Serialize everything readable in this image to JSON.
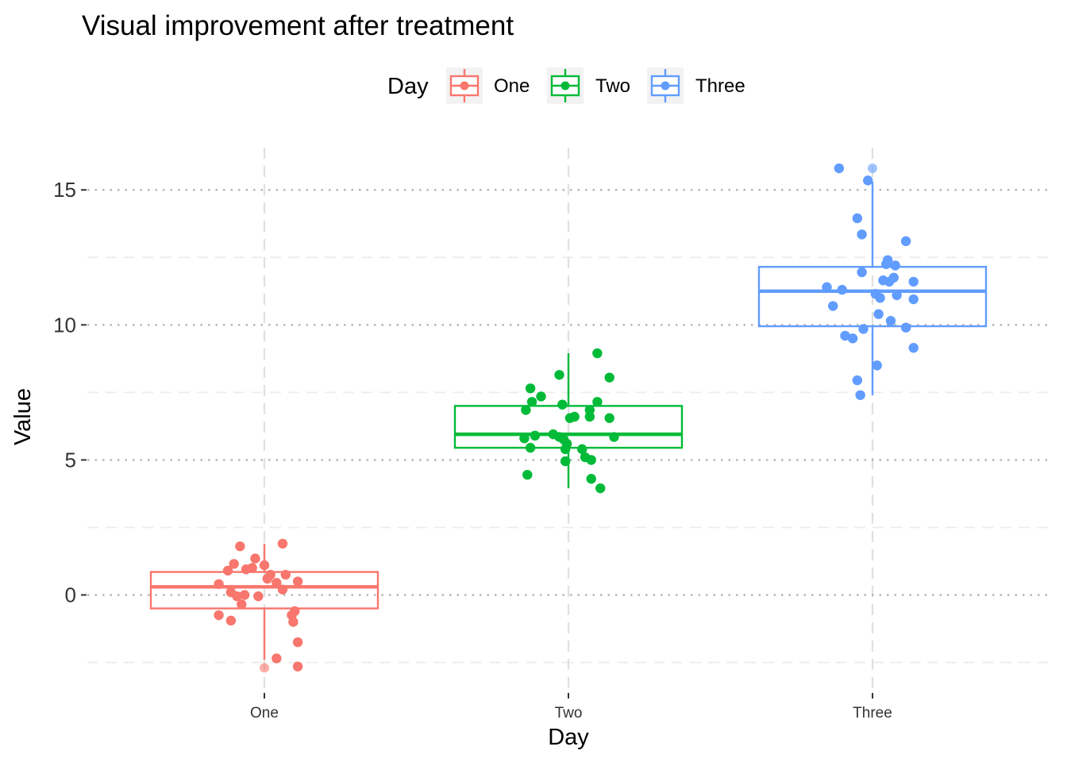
{
  "chart_data": {
    "type": "boxplot",
    "title": "Visual improvement after treatment",
    "xlabel": "Day",
    "ylabel": "Value",
    "ylim": [
      -3.6,
      16.8
    ],
    "yticks": [
      0,
      5,
      10,
      15
    ],
    "ytick_labels": [
      "0",
      "5",
      "10",
      "15"
    ],
    "grid": true,
    "legend": {
      "title": "Day",
      "position": "top"
    },
    "categories": [
      "One",
      "Two",
      "Three"
    ],
    "series": [
      {
        "name": "One",
        "color": "#F8766D",
        "box": {
          "whisker_low": -2.4,
          "q1": -0.5,
          "median": 0.3,
          "q3": 0.85,
          "whisker_high": 1.9
        },
        "outliers": [
          -2.7
        ],
        "points": [
          {
            "dx": -0.08,
            "y": 1.8
          },
          {
            "dx": 0.06,
            "y": 1.9
          },
          {
            "dx": -0.1,
            "y": 1.15
          },
          {
            "dx": -0.03,
            "y": 1.35
          },
          {
            "dx": 0.0,
            "y": 1.1
          },
          {
            "dx": -0.12,
            "y": 0.9
          },
          {
            "dx": -0.06,
            "y": 0.95
          },
          {
            "dx": -0.04,
            "y": 1.0
          },
          {
            "dx": 0.02,
            "y": 0.75
          },
          {
            "dx": 0.07,
            "y": 0.75
          },
          {
            "dx": 0.01,
            "y": 0.6
          },
          {
            "dx": 0.04,
            "y": 0.45
          },
          {
            "dx": 0.11,
            "y": 0.5
          },
          {
            "dx": -0.15,
            "y": 0.4
          },
          {
            "dx": 0.06,
            "y": 0.2
          },
          {
            "dx": -0.11,
            "y": 0.1
          },
          {
            "dx": -0.09,
            "y": -0.05
          },
          {
            "dx": -0.065,
            "y": 0.0
          },
          {
            "dx": -0.02,
            "y": -0.05
          },
          {
            "dx": -0.075,
            "y": -0.35
          },
          {
            "dx": 0.1,
            "y": -0.6
          },
          {
            "dx": 0.09,
            "y": -0.75
          },
          {
            "dx": -0.15,
            "y": -0.75
          },
          {
            "dx": 0.095,
            "y": -1.0
          },
          {
            "dx": -0.11,
            "y": -0.95
          },
          {
            "dx": 0.11,
            "y": -1.75
          },
          {
            "dx": 0.04,
            "y": -2.35
          },
          {
            "dx": 0.11,
            "y": -2.65
          }
        ]
      },
      {
        "name": "Two",
        "color": "#00BA38",
        "box": {
          "whisker_low": 3.95,
          "q1": 5.45,
          "median": 5.95,
          "q3": 7.0,
          "whisker_high": 8.95
        },
        "outliers": [],
        "points": [
          {
            "dx": 0.095,
            "y": 8.95
          },
          {
            "dx": -0.03,
            "y": 8.15
          },
          {
            "dx": 0.135,
            "y": 8.05
          },
          {
            "dx": -0.125,
            "y": 7.65
          },
          {
            "dx": -0.09,
            "y": 7.35
          },
          {
            "dx": -0.12,
            "y": 7.15
          },
          {
            "dx": 0.095,
            "y": 7.15
          },
          {
            "dx": -0.02,
            "y": 7.05
          },
          {
            "dx": -0.14,
            "y": 6.85
          },
          {
            "dx": 0.07,
            "y": 6.85
          },
          {
            "dx": 0.02,
            "y": 6.6
          },
          {
            "dx": 0.005,
            "y": 6.55
          },
          {
            "dx": 0.07,
            "y": 6.6
          },
          {
            "dx": 0.135,
            "y": 6.55
          },
          {
            "dx": -0.11,
            "y": 5.9
          },
          {
            "dx": -0.05,
            "y": 5.95
          },
          {
            "dx": -0.03,
            "y": 5.85
          },
          {
            "dx": -0.145,
            "y": 5.8
          },
          {
            "dx": -0.015,
            "y": 5.75
          },
          {
            "dx": 0.15,
            "y": 5.85
          },
          {
            "dx": -0.005,
            "y": 5.6
          },
          {
            "dx": -0.125,
            "y": 5.45
          },
          {
            "dx": -0.01,
            "y": 5.4
          },
          {
            "dx": 0.045,
            "y": 5.4
          },
          {
            "dx": 0.055,
            "y": 5.1
          },
          {
            "dx": 0.075,
            "y": 5.0
          },
          {
            "dx": -0.01,
            "y": 4.95
          },
          {
            "dx": -0.135,
            "y": 4.45
          },
          {
            "dx": 0.075,
            "y": 4.3
          },
          {
            "dx": 0.105,
            "y": 3.95
          }
        ]
      },
      {
        "name": "Three",
        "color": "#619CFF",
        "box": {
          "whisker_low": 7.4,
          "q1": 9.95,
          "median": 11.25,
          "q3": 12.15,
          "whisker_high": 15.3
        },
        "outliers": [
          15.8
        ],
        "points": [
          {
            "dx": -0.11,
            "y": 15.8
          },
          {
            "dx": -0.015,
            "y": 15.35
          },
          {
            "dx": -0.05,
            "y": 13.95
          },
          {
            "dx": -0.035,
            "y": 13.35
          },
          {
            "dx": 0.11,
            "y": 13.1
          },
          {
            "dx": 0.05,
            "y": 12.4
          },
          {
            "dx": 0.045,
            "y": 12.25
          },
          {
            "dx": 0.075,
            "y": 12.2
          },
          {
            "dx": -0.035,
            "y": 11.95
          },
          {
            "dx": 0.07,
            "y": 11.75
          },
          {
            "dx": 0.035,
            "y": 11.65
          },
          {
            "dx": 0.055,
            "y": 11.6
          },
          {
            "dx": 0.135,
            "y": 11.6
          },
          {
            "dx": -0.15,
            "y": 11.4
          },
          {
            "dx": -0.1,
            "y": 11.3
          },
          {
            "dx": 0.01,
            "y": 11.15
          },
          {
            "dx": 0.025,
            "y": 11.0
          },
          {
            "dx": 0.08,
            "y": 11.1
          },
          {
            "dx": 0.135,
            "y": 10.95
          },
          {
            "dx": -0.13,
            "y": 10.7
          },
          {
            "dx": 0.02,
            "y": 10.4
          },
          {
            "dx": 0.06,
            "y": 10.15
          },
          {
            "dx": -0.03,
            "y": 9.85
          },
          {
            "dx": 0.11,
            "y": 9.9
          },
          {
            "dx": -0.09,
            "y": 9.6
          },
          {
            "dx": -0.065,
            "y": 9.5
          },
          {
            "dx": 0.135,
            "y": 9.15
          },
          {
            "dx": 0.015,
            "y": 8.5
          },
          {
            "dx": -0.05,
            "y": 7.95
          },
          {
            "dx": -0.04,
            "y": 7.4
          }
        ]
      }
    ]
  }
}
